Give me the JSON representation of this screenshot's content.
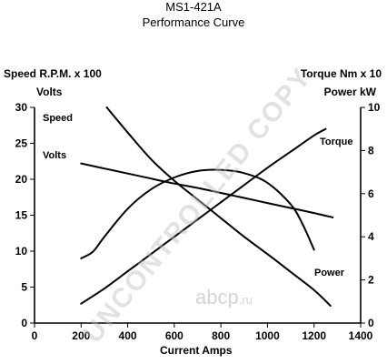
{
  "chart_data": {
    "type": "line",
    "title": "MS1-421A",
    "subtitle": "Performance Curve",
    "xlabel": "Current Amps",
    "xlim": [
      0,
      1400
    ],
    "x_ticks": [
      "0",
      "200",
      "400",
      "600",
      "800",
      "1000",
      "1200",
      "1400"
    ],
    "y_left_label_line1": "Speed R.P.M. x 100",
    "y_left_label_line2": "Volts",
    "y_left_lim": [
      0,
      30
    ],
    "y_left_ticks": [
      "0",
      "5",
      "10",
      "15",
      "20",
      "25",
      "30"
    ],
    "y_right_label_line1": "Torque Nm x 10",
    "y_right_label_line2": "Power kW",
    "y_right_lim": [
      0,
      10
    ],
    "y_right_ticks": [
      "0",
      "2",
      "4",
      "6",
      "8",
      "10"
    ],
    "grid": false,
    "series": [
      {
        "name": "Speed",
        "axis": "left",
        "x": [
          310,
          400,
          500,
          600,
          700,
          800,
          900,
          1000,
          1100,
          1200,
          1270
        ],
        "y": [
          30,
          26.5,
          22.8,
          19.8,
          17.2,
          14.6,
          12.0,
          9.6,
          7.1,
          4.6,
          2.4
        ]
      },
      {
        "name": "Volts",
        "axis": "left",
        "x": [
          200,
          300,
          400,
          500,
          600,
          700,
          800,
          900,
          1000,
          1100,
          1200,
          1280
        ],
        "y": [
          22.2,
          21.5,
          20.8,
          20.1,
          19.4,
          18.8,
          18.1,
          17.4,
          16.7,
          16.0,
          15.3,
          14.7
        ]
      },
      {
        "name": "Torque",
        "axis": "right",
        "x": [
          200,
          300,
          400,
          500,
          600,
          700,
          800,
          900,
          1000,
          1100,
          1200,
          1250
        ],
        "y": [
          0.9,
          1.6,
          2.4,
          3.2,
          4.0,
          4.8,
          5.6,
          6.4,
          7.2,
          7.95,
          8.7,
          9.0
        ]
      },
      {
        "name": "Power",
        "axis": "right",
        "x": [
          200,
          250,
          300,
          400,
          500,
          600,
          700,
          800,
          900,
          1000,
          1100,
          1150,
          1200
        ],
        "y": [
          3.0,
          3.3,
          4.0,
          5.3,
          6.2,
          6.75,
          7.05,
          7.1,
          6.95,
          6.5,
          5.5,
          4.6,
          3.4
        ]
      }
    ],
    "annotations": {
      "watermark": "UNCONTROLLED COPY",
      "brand": "abcp",
      "brand_suffix": ".ru"
    }
  }
}
